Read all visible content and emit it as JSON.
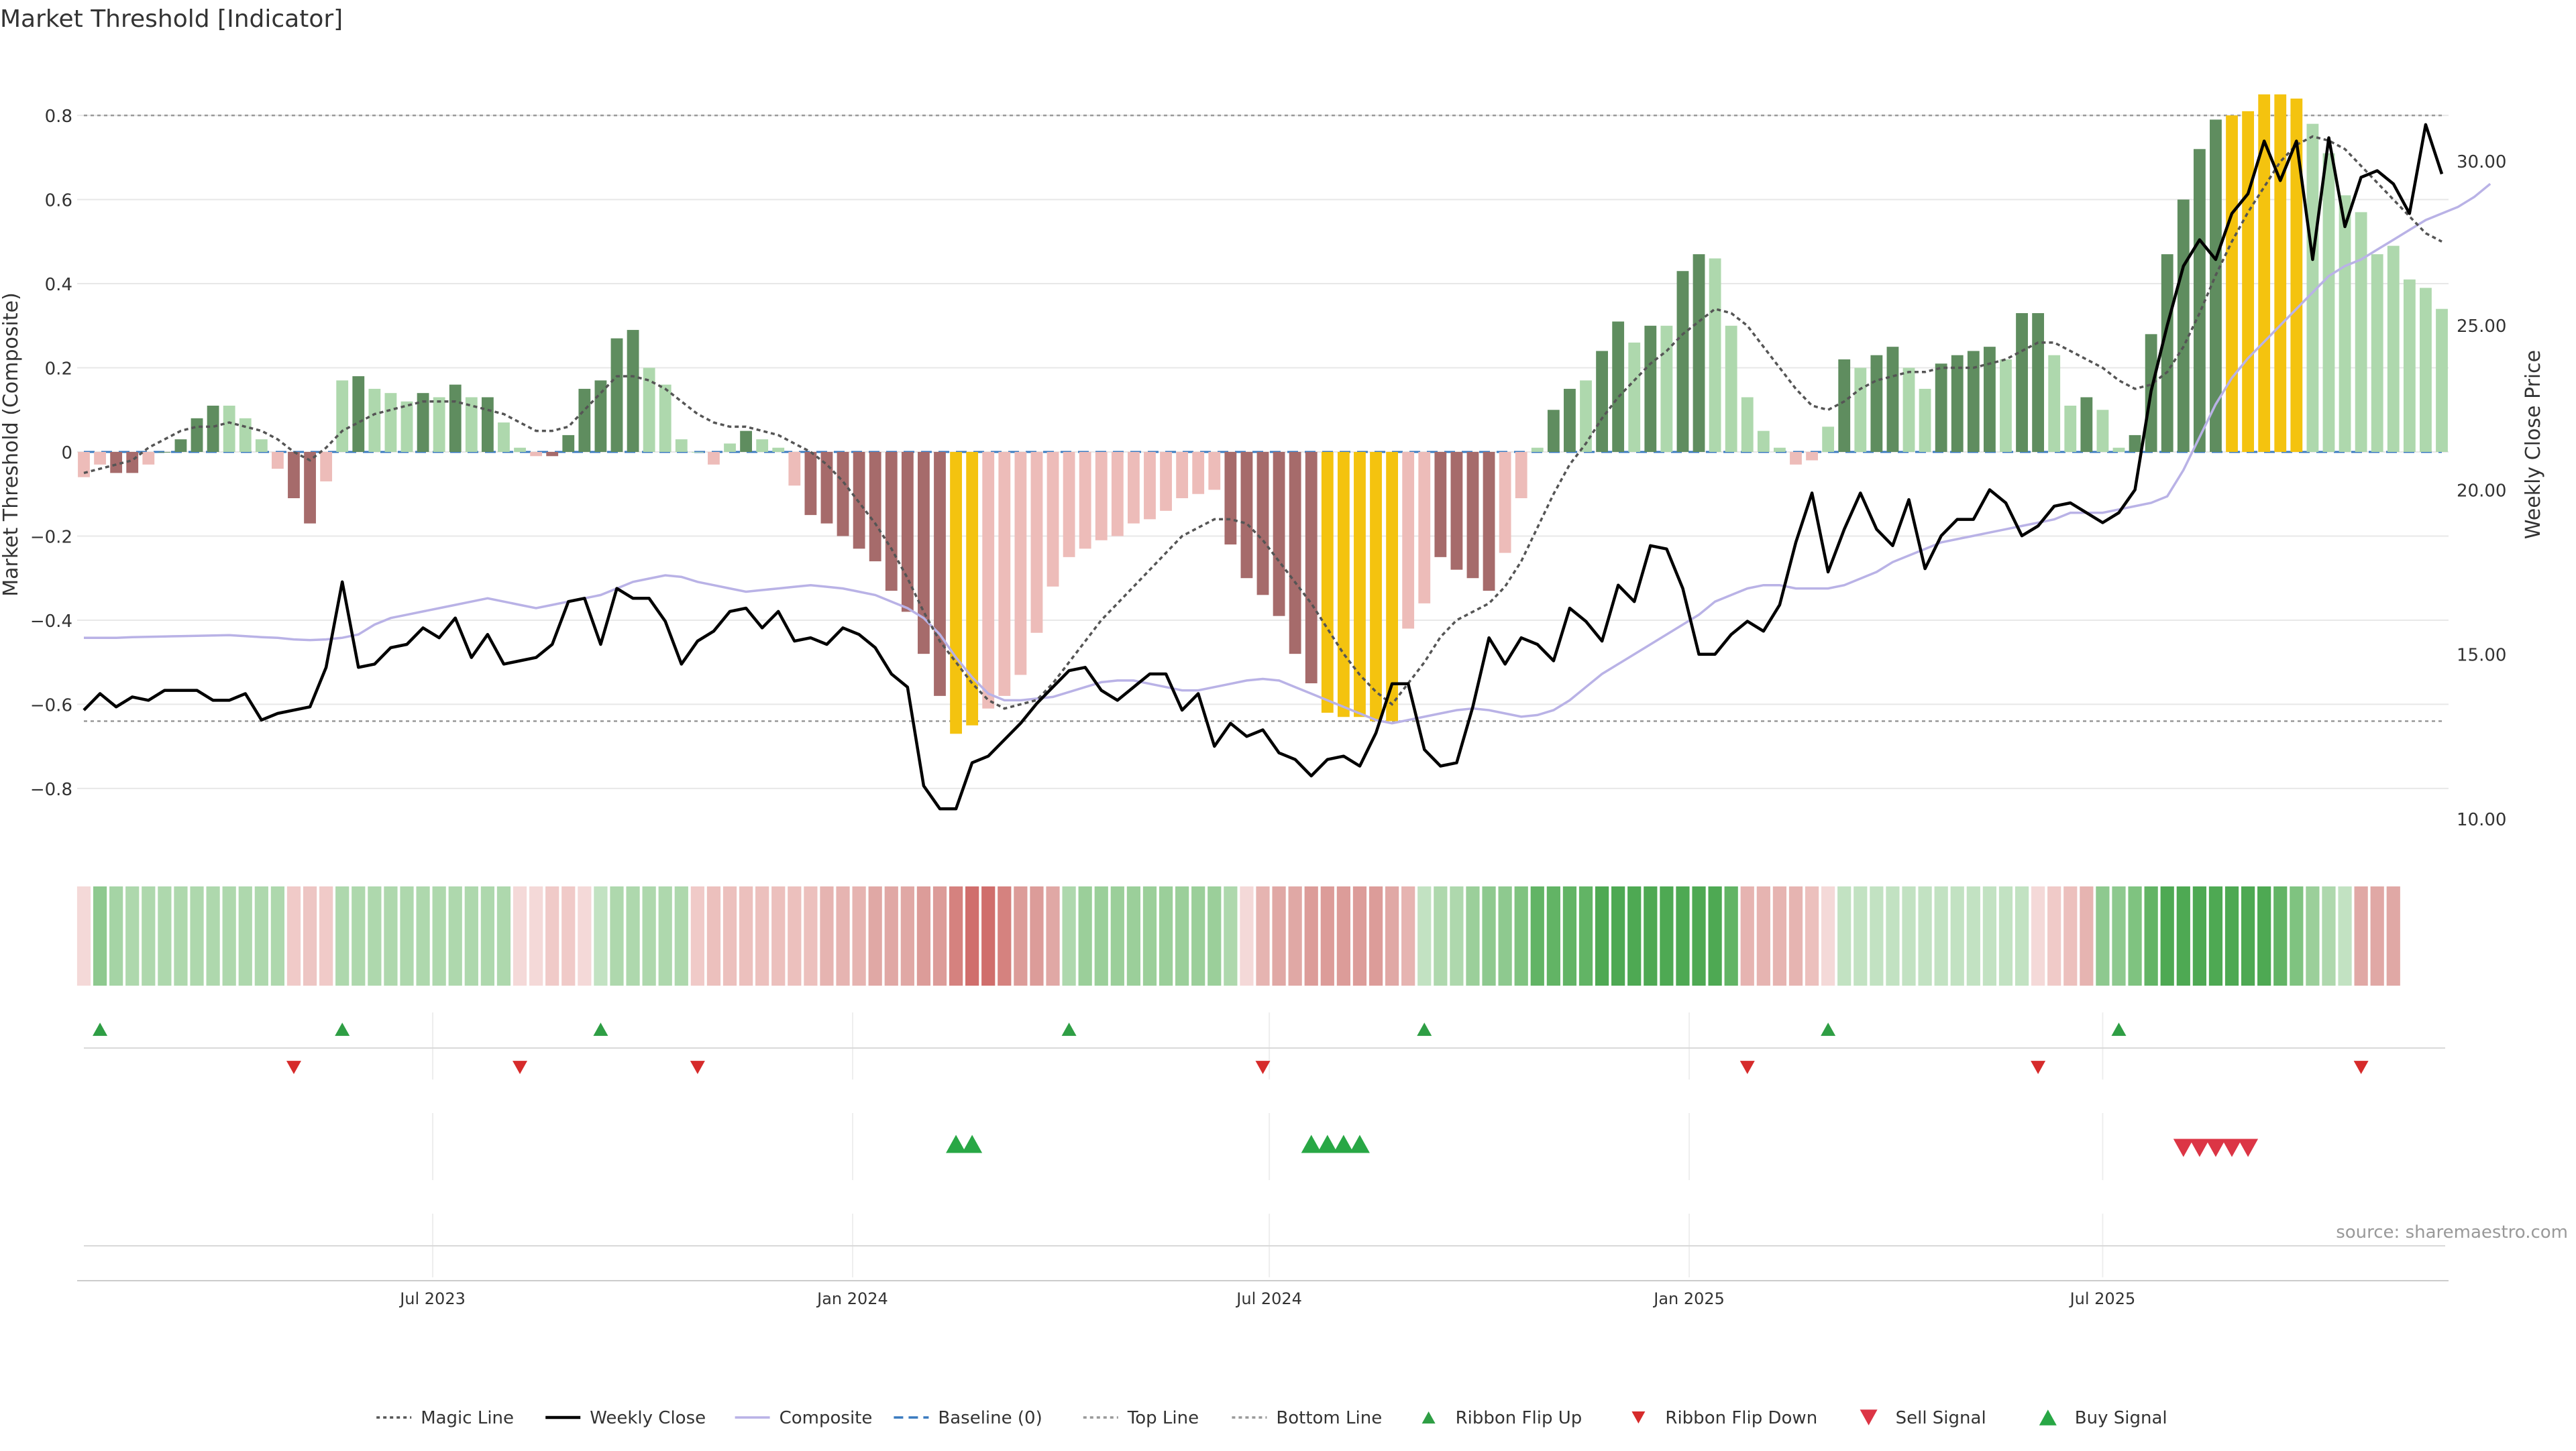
{
  "chart_data": {
    "type": "bar",
    "title": "Market Threshold [Indicator]",
    "ylabel": "Market Threshold (Composite)",
    "ylabel_right": "Weekly Close Price",
    "ylim": [
      -0.95,
      0.95
    ],
    "ylim_right": [
      9.0,
      33.3
    ],
    "y_ticks": [
      -0.8,
      -0.6,
      -0.4,
      -0.2,
      0,
      0.2,
      0.4,
      0.6,
      0.8
    ],
    "y_tick_labels": [
      "−0.8",
      "−0.6",
      "−0.4",
      "−0.2",
      "0",
      "0.2",
      "0.4",
      "0.6",
      "0.8"
    ],
    "y_right_ticks": [
      10,
      15,
      20,
      25,
      30
    ],
    "y_right_tick_labels": [
      "10.00",
      "15.00",
      "20.00",
      "25.00",
      "30.00"
    ],
    "x_tick_weeks": [
      21.6,
      47.6,
      73.4,
      99.4,
      125
    ],
    "x_tick_labels": [
      "Jul 2023",
      "Jan 2024",
      "Jul 2024",
      "Jan 2025",
      "Jul 2025"
    ],
    "top_line": 0.8,
    "bottom_line": -0.64,
    "baseline": 0,
    "composite": [
      -0.06,
      -0.03,
      -0.05,
      -0.05,
      -0.03,
      0,
      0.03,
      0.08,
      0.11,
      0.11,
      0.08,
      0.03,
      -0.04,
      -0.11,
      -0.17,
      -0.07,
      0.17,
      0.18,
      0.15,
      0.14,
      0.12,
      0.14,
      0.13,
      0.16,
      0.13,
      0.13,
      0.07,
      0.01,
      -0.01,
      -0.01,
      0.04,
      0.15,
      0.17,
      0.27,
      0.29,
      0.2,
      0.16,
      0.03,
      0,
      -0.03,
      0.02,
      0.05,
      0.03,
      0.01,
      -0.08,
      -0.15,
      -0.17,
      -0.2,
      -0.23,
      -0.26,
      -0.33,
      -0.38,
      -0.48,
      -0.58,
      -0.67,
      -0.65,
      -0.61,
      -0.58,
      -0.53,
      -0.43,
      -0.32,
      -0.25,
      -0.23,
      -0.21,
      -0.2,
      -0.17,
      -0.16,
      -0.14,
      -0.11,
      -0.1,
      -0.09,
      -0.22,
      -0.3,
      -0.34,
      -0.39,
      -0.48,
      -0.55,
      -0.62,
      -0.63,
      -0.63,
      -0.64,
      -0.64,
      -0.42,
      -0.36,
      -0.25,
      -0.28,
      -0.3,
      -0.33,
      -0.24,
      -0.11,
      0.01,
      0.1,
      0.15,
      0.17,
      0.24,
      0.31,
      0.26,
      0.3,
      0.3,
      0.43,
      0.47,
      0.46,
      0.3,
      0.13,
      0.05,
      0.01,
      -0.03,
      -0.02,
      0.06,
      0.22,
      0.2,
      0.23,
      0.25,
      0.2,
      0.15,
      0.21,
      0.23,
      0.24,
      0.25,
      0.22,
      0.33,
      0.33,
      0.23,
      0.11,
      0.13,
      0.1,
      0.01,
      0.04,
      0.28,
      0.47,
      0.6,
      0.72,
      0.79,
      0.8,
      0.81,
      0.85,
      0.85,
      0.84,
      0.78,
      0.71,
      0.61,
      0.57,
      0.47,
      0.49,
      0.41,
      0.39,
      0.34
    ],
    "bar_colors": [
      "#edbcb9",
      "#edbcb9",
      "#a66b6b",
      "#a66b6b",
      "#edbcb9",
      "#5f8d5f",
      "#5f8d5f",
      "#5f8d5f",
      "#5f8d5f",
      "#aed8ad",
      "#aed8ad",
      "#aed8ad",
      "#edbcb9",
      "#a66b6b",
      "#a66b6b",
      "#edbcb9",
      "#aed8ad",
      "#5f8d5f",
      "#aed8ad",
      "#aed8ad",
      "#aed8ad",
      "#5f8d5f",
      "#aed8ad",
      "#5f8d5f",
      "#aed8ad",
      "#5f8d5f",
      "#aed8ad",
      "#aed8ad",
      "#edbcb9",
      "#a66b6b",
      "#5f8d5f",
      "#5f8d5f",
      "#5f8d5f",
      "#5f8d5f",
      "#5f8d5f",
      "#aed8ad",
      "#aed8ad",
      "#aed8ad",
      "#aed8ad",
      "#edbcb9",
      "#aed8ad",
      "#5f8d5f",
      "#aed8ad",
      "#aed8ad",
      "#edbcb9",
      "#a66b6b",
      "#a66b6b",
      "#a66b6b",
      "#a66b6b",
      "#a66b6b",
      "#a66b6b",
      "#a66b6b",
      "#a66b6b",
      "#a66b6b",
      "#f4c30f",
      "#f4c30f",
      "#edbcb9",
      "#edbcb9",
      "#edbcb9",
      "#edbcb9",
      "#edbcb9",
      "#edbcb9",
      "#edbcb9",
      "#edbcb9",
      "#edbcb9",
      "#edbcb9",
      "#edbcb9",
      "#edbcb9",
      "#edbcb9",
      "#edbcb9",
      "#edbcb9",
      "#a66b6b",
      "#a66b6b",
      "#a66b6b",
      "#a66b6b",
      "#a66b6b",
      "#a66b6b",
      "#f4c30f",
      "#f4c30f",
      "#f4c30f",
      "#f4c30f",
      "#f4c30f",
      "#edbcb9",
      "#edbcb9",
      "#a66b6b",
      "#a66b6b",
      "#a66b6b",
      "#a66b6b",
      "#edbcb9",
      "#edbcb9",
      "#aed8ad",
      "#5f8d5f",
      "#5f8d5f",
      "#aed8ad",
      "#5f8d5f",
      "#5f8d5f",
      "#aed8ad",
      "#5f8d5f",
      "#aed8ad",
      "#5f8d5f",
      "#5f8d5f",
      "#aed8ad",
      "#aed8ad",
      "#aed8ad",
      "#aed8ad",
      "#aed8ad",
      "#edbcb9",
      "#edbcb9",
      "#aed8ad",
      "#5f8d5f",
      "#aed8ad",
      "#5f8d5f",
      "#5f8d5f",
      "#aed8ad",
      "#aed8ad",
      "#5f8d5f",
      "#5f8d5f",
      "#5f8d5f",
      "#5f8d5f",
      "#aed8ad",
      "#5f8d5f",
      "#5f8d5f",
      "#aed8ad",
      "#aed8ad",
      "#5f8d5f",
      "#aed8ad",
      "#aed8ad",
      "#5f8d5f",
      "#5f8d5f",
      "#5f8d5f",
      "#5f8d5f",
      "#5f8d5f",
      "#5f8d5f",
      "#f4c30f",
      "#f4c30f",
      "#f4c30f",
      "#f4c30f",
      "#f4c30f",
      "#aed8ad",
      "#aed8ad",
      "#aed8ad",
      "#aed8ad",
      "#aed8ad",
      "#aed8ad",
      "#aed8ad",
      "#aed8ad",
      "#aed8ad"
    ],
    "magic_line": [
      -0.05,
      -0.04,
      -0.03,
      -0.02,
      0.01,
      0.03,
      0.05,
      0.06,
      0.06,
      0.07,
      0.06,
      0.05,
      0.03,
      0,
      -0.02,
      0.01,
      0.05,
      0.07,
      0.09,
      0.1,
      0.11,
      0.12,
      0.12,
      0.12,
      0.11,
      0.1,
      0.09,
      0.07,
      0.05,
      0.05,
      0.06,
      0.1,
      0.14,
      0.18,
      0.18,
      0.17,
      0.15,
      0.12,
      0.09,
      0.07,
      0.06,
      0.06,
      0.05,
      0.04,
      0.02,
      0,
      -0.03,
      -0.07,
      -0.12,
      -0.17,
      -0.23,
      -0.3,
      -0.38,
      -0.45,
      -0.5,
      -0.55,
      -0.59,
      -0.61,
      -0.6,
      -0.59,
      -0.55,
      -0.5,
      -0.45,
      -0.4,
      -0.36,
      -0.32,
      -0.28,
      -0.24,
      -0.2,
      -0.18,
      -0.16,
      -0.16,
      -0.17,
      -0.21,
      -0.26,
      -0.31,
      -0.36,
      -0.42,
      -0.48,
      -0.53,
      -0.57,
      -0.6,
      -0.55,
      -0.5,
      -0.44,
      -0.4,
      -0.38,
      -0.36,
      -0.32,
      -0.26,
      -0.18,
      -0.1,
      -0.03,
      0.02,
      0.08,
      0.13,
      0.17,
      0.21,
      0.24,
      0.28,
      0.31,
      0.34,
      0.33,
      0.3,
      0.25,
      0.2,
      0.15,
      0.11,
      0.1,
      0.12,
      0.15,
      0.17,
      0.18,
      0.19,
      0.19,
      0.2,
      0.2,
      0.2,
      0.21,
      0.22,
      0.24,
      0.26,
      0.26,
      0.24,
      0.22,
      0.2,
      0.17,
      0.15,
      0.16,
      0.19,
      0.25,
      0.33,
      0.42,
      0.5,
      0.57,
      0.63,
      0.69,
      0.73,
      0.75,
      0.74,
      0.72,
      0.68,
      0.64,
      0.6,
      0.56,
      0.52,
      0.5
    ],
    "composite_line": [
      15.5,
      15.5,
      15.5,
      15.52,
      15.53,
      15.54,
      15.55,
      15.56,
      15.57,
      15.58,
      15.55,
      15.52,
      15.5,
      15.45,
      15.43,
      15.45,
      15.5,
      15.6,
      15.9,
      16.1,
      16.2,
      16.3,
      16.4,
      16.5,
      16.6,
      16.7,
      16.6,
      16.5,
      16.4,
      16.5,
      16.6,
      16.7,
      16.8,
      17.0,
      17.2,
      17.3,
      17.4,
      17.35,
      17.2,
      17.1,
      17.0,
      16.9,
      16.95,
      17.0,
      17.05,
      17.1,
      17.05,
      17.0,
      16.9,
      16.8,
      16.6,
      16.4,
      16.1,
      15.6,
      14.9,
      14.3,
      13.8,
      13.6,
      13.6,
      13.65,
      13.7,
      13.85,
      14.0,
      14.15,
      14.2,
      14.2,
      14.1,
      14.0,
      13.9,
      13.9,
      14.0,
      14.1,
      14.2,
      14.25,
      14.2,
      14.0,
      13.8,
      13.6,
      13.4,
      13.2,
      13.0,
      12.9,
      13.0,
      13.1,
      13.2,
      13.3,
      13.35,
      13.3,
      13.2,
      13.1,
      13.15,
      13.3,
      13.6,
      14.0,
      14.4,
      14.7,
      15.0,
      15.3,
      15.6,
      15.9,
      16.2,
      16.6,
      16.8,
      17.0,
      17.1,
      17.1,
      17.0,
      17.0,
      17.0,
      17.1,
      17.3,
      17.5,
      17.8,
      18.0,
      18.2,
      18.4,
      18.5,
      18.6,
      18.7,
      18.8,
      18.9,
      19.0,
      19.1,
      19.3,
      19.3,
      19.3,
      19.4,
      19.5,
      19.6,
      19.8,
      20.6,
      21.6,
      22.6,
      23.4,
      24.0,
      24.5,
      25.0,
      25.5,
      26.0,
      26.5,
      26.8,
      27.0,
      27.3,
      27.6,
      27.9,
      28.2,
      28.4,
      28.6,
      28.9,
      29.3
    ],
    "weekly_close": [
      13.3,
      13.8,
      13.4,
      13.7,
      13.6,
      13.9,
      13.9,
      13.9,
      13.6,
      13.6,
      13.8,
      13.0,
      13.2,
      13.3,
      13.4,
      14.6,
      17.2,
      14.6,
      14.7,
      15.2,
      15.3,
      15.8,
      15.5,
      16.1,
      14.9,
      15.6,
      14.7,
      14.8,
      14.9,
      15.3,
      16.6,
      16.7,
      15.3,
      17.0,
      16.7,
      16.7,
      16.0,
      14.7,
      15.4,
      15.7,
      16.3,
      16.4,
      15.8,
      16.3,
      15.4,
      15.5,
      15.3,
      15.8,
      15.6,
      15.2,
      14.4,
      14.0,
      11.0,
      10.3,
      10.3,
      11.7,
      11.9,
      12.4,
      12.9,
      13.5,
      14.0,
      14.5,
      14.6,
      13.9,
      13.6,
      14.0,
      14.4,
      14.4,
      13.3,
      13.8,
      12.2,
      12.9,
      12.5,
      12.7,
      12.0,
      11.8,
      11.3,
      11.8,
      11.9,
      11.6,
      12.6,
      14.1,
      14.1,
      12.1,
      11.6,
      11.7,
      13.4,
      15.5,
      14.7,
      15.5,
      15.3,
      14.8,
      16.4,
      16.0,
      15.4,
      17.1,
      16.6,
      18.3,
      18.2,
      17.0,
      15.0,
      15.0,
      15.6,
      16.0,
      15.7,
      16.5,
      18.4,
      19.9,
      17.5,
      18.8,
      19.9,
      18.8,
      18.3,
      19.7,
      17.6,
      18.6,
      19.1,
      19.1,
      20.0,
      19.6,
      18.6,
      18.9,
      19.5,
      19.6,
      19.3,
      19.0,
      19.3,
      20.0,
      23.0,
      25.0,
      26.8,
      27.6,
      27.0,
      28.4,
      29.0,
      30.6,
      29.4,
      30.6,
      27.0,
      30.7,
      28.0,
      29.5,
      29.7,
      29.3,
      28.4,
      31.1,
      29.6
    ],
    "ribbon_colors": [
      "#f4d9d8",
      "#8ec98f",
      "#a5d4a5",
      "#aed8ad",
      "#aed8ad",
      "#aed8ad",
      "#aed8ad",
      "#aed8ad",
      "#aed8ad",
      "#aed8ad",
      "#aed8ad",
      "#aed8ad",
      "#aed8ad",
      "#f0cac8",
      "#edc5c3",
      "#f0cac8",
      "#aed8ad",
      "#aed8ad",
      "#aed8ad",
      "#aed8ad",
      "#aed8ad",
      "#aed8ad",
      "#aed8ad",
      "#aed8ad",
      "#aed8ad",
      "#aed8ad",
      "#aed8ad",
      "#f4d9d8",
      "#f4d9d8",
      "#f0cac8",
      "#f0cac8",
      "#f4d9d8",
      "#c2e2c2",
      "#aed8ad",
      "#aed8ad",
      "#aed8ad",
      "#aed8ad",
      "#aed8ad",
      "#f0cac8",
      "#ecc0bd",
      "#ecc0bd",
      "#ecc0bd",
      "#ecc0bd",
      "#ecc0bd",
      "#ecc0bd",
      "#ecc0bd",
      "#e6b4b1",
      "#e6b4b1",
      "#e6b4b1",
      "#e0a8a5",
      "#e0a8a5",
      "#e0a8a5",
      "#dc9c99",
      "#dc9c99",
      "#d5827f",
      "#d06e6c",
      "#d06e6c",
      "#d5827f",
      "#dc9c99",
      "#dc9c99",
      "#e0a8a5",
      "#aed8ad",
      "#9bcf9a",
      "#9bcf9a",
      "#9bcf9a",
      "#9bcf9a",
      "#9bcf9a",
      "#9bcf9a",
      "#9bcf9a",
      "#9bcf9a",
      "#9bcf9a",
      "#aed8ad",
      "#f4d9d8",
      "#e6b4b1",
      "#e0a8a5",
      "#e0a8a5",
      "#dc9c99",
      "#dc9c99",
      "#dc9c99",
      "#dc9c99",
      "#dc9c99",
      "#e0a8a5",
      "#e6b4b1",
      "#c2e2c2",
      "#aed8ad",
      "#aed8ad",
      "#9bcf9a",
      "#8ec98f",
      "#8ec98f",
      "#7fc380",
      "#62b465",
      "#62b465",
      "#62b465",
      "#62b465",
      "#4ea953",
      "#4ea953",
      "#4ea953",
      "#4ea953",
      "#4ea953",
      "#4ea953",
      "#4ea953",
      "#4ea953",
      "#62b465",
      "#e6b4b1",
      "#e6b4b1",
      "#e6b4b1",
      "#e6b4b1",
      "#ecc0bd",
      "#f4d9d8",
      "#c2e2c2",
      "#c2e2c2",
      "#c2e2c2",
      "#c2e2c2",
      "#c2e2c2",
      "#c2e2c2",
      "#c2e2c2",
      "#c2e2c2",
      "#c2e2c2",
      "#c2e2c2",
      "#c2e2c2",
      "#c2e2c2",
      "#f4d9d8",
      "#f0cac8",
      "#ecc0bd",
      "#e6b4b1",
      "#8ec98f",
      "#8ec98f",
      "#7fc380",
      "#62b465",
      "#4ea953",
      "#4ea953",
      "#4ea953",
      "#4ea953",
      "#4ea953",
      "#4ea953",
      "#4ea953",
      "#62b465",
      "#7fc380",
      "#9bcf9a",
      "#aed8ad",
      "#c2e2c2",
      "#e0a8a5",
      "#e0a8a5",
      "#e0a8a5"
    ],
    "ribbon_flip_up_weeks": [
      1,
      16,
      32,
      61,
      83,
      108,
      126
    ],
    "ribbon_flip_down_weeks": [
      13,
      27,
      38,
      73,
      103,
      121,
      141
    ],
    "buy_signal_weeks": [
      54,
      55,
      76,
      77,
      78,
      79
    ],
    "sell_signal_weeks": [
      130,
      131,
      132,
      133,
      134
    ],
    "legend": [
      {
        "label": "Magic Line",
        "kind": "line",
        "color": "#555555",
        "dash": "dot"
      },
      {
        "label": "Weekly Close",
        "kind": "line",
        "color": "#000000",
        "dash": "solid"
      },
      {
        "label": "Composite",
        "kind": "line",
        "color": "#b9b2e6",
        "dash": "solid"
      },
      {
        "label": "Baseline (0)",
        "kind": "line",
        "color": "#3a7abf",
        "dash": "dash"
      },
      {
        "label": "Top Line",
        "kind": "line",
        "color": "#999999",
        "dash": "dot"
      },
      {
        "label": "Bottom Line",
        "kind": "line",
        "color": "#999999",
        "dash": "dot"
      },
      {
        "label": "Ribbon Flip Up",
        "kind": "up",
        "color": "#2e9e44"
      },
      {
        "label": "Ribbon Flip Down",
        "kind": "down",
        "color": "#d62b2b"
      },
      {
        "label": "Sell Signal",
        "kind": "down-big",
        "color": "#dc3545"
      },
      {
        "label": "Buy Signal",
        "kind": "up-big",
        "color": "#28a745"
      }
    ],
    "source": "source: sharemaestro.com"
  },
  "colors": {
    "magic": "#555555",
    "close": "#000000",
    "composite_line": "#b9b2e6",
    "baseline": "#3a7abf",
    "threshold": "#999999",
    "flip_up": "#2e9e44",
    "flip_down": "#d62b2b",
    "buy": "#28a745",
    "sell": "#dc3545",
    "text": "#333333",
    "grid": "#e8e8e8"
  }
}
